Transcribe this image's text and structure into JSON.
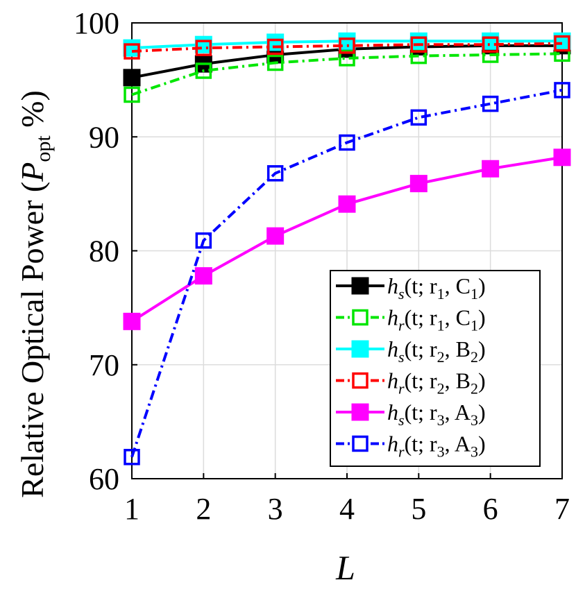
{
  "chart_data": {
    "type": "line",
    "xlabel": "L",
    "ylabel": "Relative Optical Power (",
    "ylabel_symbol": "P",
    "ylabel_subscript": "opt",
    "ylabel_unit": " %)",
    "x": [
      1,
      2,
      3,
      4,
      5,
      6,
      7
    ],
    "xlim": [
      1,
      7
    ],
    "ylim": [
      60,
      100
    ],
    "xticks": [
      "1",
      "2",
      "3",
      "4",
      "5",
      "6",
      "7"
    ],
    "yticks": [
      "60",
      "70",
      "80",
      "90",
      "100"
    ],
    "grid": true,
    "legend_position": "bottom-right",
    "series": [
      {
        "legend": {
          "fn": "h",
          "sub": "s",
          "args": "(t; r",
          "rsub": "1",
          "comma": ", C",
          "csub": "1",
          "close": ")"
        },
        "values": [
          95.2,
          96.4,
          97.2,
          97.7,
          97.9,
          98.0,
          98.0
        ],
        "color": "#000000",
        "marker_filled": true,
        "dash": "solid"
      },
      {
        "legend": {
          "fn": "h",
          "sub": "r",
          "args": "(t; r",
          "rsub": "1",
          "comma": ", C",
          "csub": "1",
          "close": ")"
        },
        "values": [
          93.7,
          95.8,
          96.5,
          96.9,
          97.1,
          97.2,
          97.3
        ],
        "color": "#00e600",
        "marker_filled": false,
        "dash": "dashdot"
      },
      {
        "legend": {
          "fn": "h",
          "sub": "s",
          "args": "(t; r",
          "rsub": "2",
          "comma": ", B",
          "csub": "2",
          "close": ")"
        },
        "values": [
          97.8,
          98.1,
          98.3,
          98.4,
          98.4,
          98.4,
          98.4
        ],
        "color": "#00ffff",
        "marker_filled": true,
        "dash": "solid"
      },
      {
        "legend": {
          "fn": "h",
          "sub": "r",
          "args": "(t; r",
          "rsub": "2",
          "comma": ", B",
          "csub": "2",
          "close": ")"
        },
        "values": [
          97.5,
          97.8,
          97.9,
          98.0,
          98.1,
          98.1,
          98.2
        ],
        "color": "#ff0000",
        "marker_filled": false,
        "dash": "dashdot"
      },
      {
        "legend": {
          "fn": "h",
          "sub": "s",
          "args": "(t; r",
          "rsub": "3",
          "comma": ", A",
          "csub": "3",
          "close": ")"
        },
        "values": [
          73.8,
          77.8,
          81.3,
          84.1,
          85.9,
          87.2,
          88.2
        ],
        "color": "#ff00ff",
        "marker_filled": true,
        "dash": "solid"
      },
      {
        "legend": {
          "fn": "h",
          "sub": "r",
          "args": "(t; r",
          "rsub": "3",
          "comma": ", A",
          "csub": "3",
          "close": ")"
        },
        "values": [
          61.9,
          80.9,
          86.8,
          89.5,
          91.7,
          92.9,
          94.1
        ],
        "color": "#0000ff",
        "marker_filled": false,
        "dash": "dashdot"
      }
    ]
  }
}
